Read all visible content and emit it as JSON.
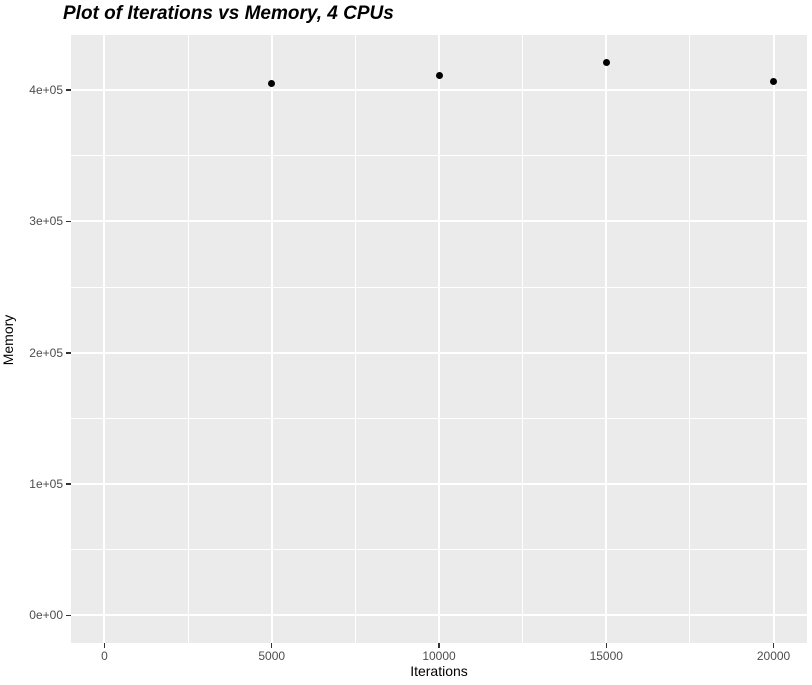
{
  "title": "Plot of Iterations vs Memory, 4 CPUs",
  "axes": {
    "x_label": "Iterations",
    "y_label": "Memory"
  },
  "chart_data": {
    "type": "scatter",
    "title": "Plot of Iterations vs Memory, 4 CPUs",
    "xlabel": "Iterations",
    "ylabel": "Memory",
    "points": [
      {
        "x": 5000,
        "y": 405000
      },
      {
        "x": 10000,
        "y": 411000
      },
      {
        "x": 15000,
        "y": 421000
      },
      {
        "x": 20000,
        "y": 407000
      }
    ],
    "x_ticks": [
      0,
      5000,
      10000,
      15000,
      20000
    ],
    "x_tick_labels": [
      "0",
      "5000",
      "10000",
      "15000",
      "20000"
    ],
    "y_ticks": [
      0,
      100000,
      200000,
      300000,
      400000
    ],
    "y_tick_labels": [
      "0e+00",
      "1e+05",
      "2e+05",
      "3e+05",
      "4e+05"
    ],
    "x_minor_ticks": [
      2500,
      7500,
      12500,
      17500
    ],
    "y_minor_ticks": [
      50000,
      150000,
      250000,
      350000
    ],
    "xlim": [
      -1000,
      21000
    ],
    "ylim": [
      -21050,
      442050
    ],
    "grid": "major and minor, white lines on grey panel",
    "legend_position": "none",
    "style": {
      "panel_background": "#EBEBEB",
      "grid_color": "#FFFFFF",
      "point_color": "#000000",
      "tick_label_color": "#4D4D4D",
      "tick_mark_color": "#333333",
      "title_color": "#000000",
      "axis_title_color": "#000000"
    }
  }
}
